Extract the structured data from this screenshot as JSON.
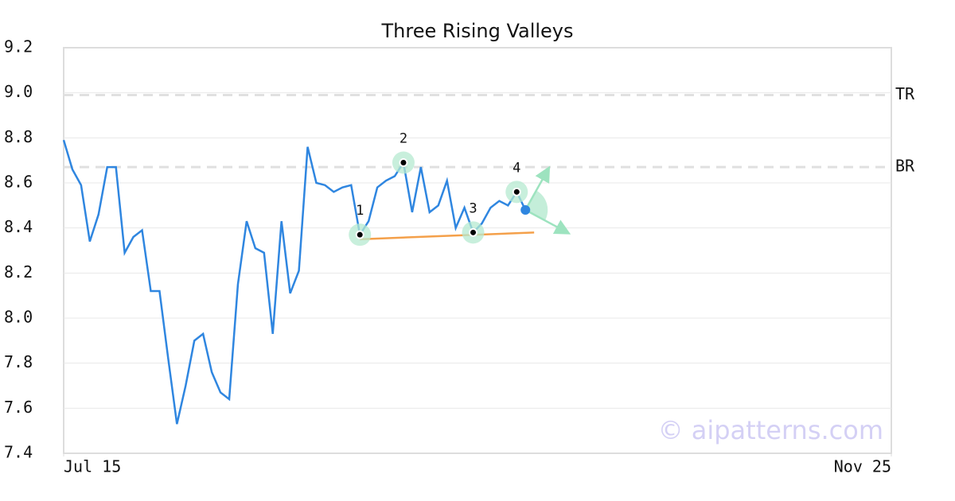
{
  "chart_data": {
    "type": "line",
    "title": "Three Rising Valleys",
    "x": [
      0,
      1,
      2,
      3,
      4,
      5,
      6,
      7,
      8,
      9,
      10,
      11,
      12,
      13,
      14,
      15,
      16,
      17,
      18,
      19,
      20,
      21,
      22,
      23,
      24,
      25,
      26,
      27,
      28,
      29,
      30,
      31,
      32,
      33,
      34,
      35,
      36,
      37,
      38,
      39,
      40,
      41,
      42,
      43,
      44,
      45,
      46,
      47,
      48,
      49,
      50,
      51,
      52,
      53
    ],
    "values": [
      8.79,
      8.66,
      8.59,
      8.34,
      8.46,
      8.67,
      8.67,
      8.29,
      8.36,
      8.39,
      8.12,
      8.12,
      7.82,
      7.53,
      7.7,
      7.9,
      7.93,
      7.76,
      7.67,
      7.64,
      8.15,
      8.43,
      8.31,
      8.29,
      7.93,
      8.43,
      8.11,
      8.21,
      8.76,
      8.6,
      8.59,
      8.56,
      8.58,
      8.59,
      8.37,
      8.43,
      8.58,
      8.61,
      8.63,
      8.69,
      8.47,
      8.67,
      8.47,
      8.5,
      8.61,
      8.4,
      8.49,
      8.38,
      8.42,
      8.49,
      8.52,
      8.5,
      8.56,
      8.48
    ],
    "color": "#2f86e0",
    "xlim": [
      0,
      95
    ],
    "xticks": [
      {
        "value": 0,
        "label": "Jul 15"
      },
      {
        "value": 95,
        "label": "Nov 25"
      }
    ],
    "ylim": [
      7.4,
      9.2
    ],
    "yticks": [
      7.4,
      7.6,
      7.8,
      {
        "value": 8,
        "label": "8.0"
      },
      8.2,
      8.4,
      8.6,
      8.8,
      {
        "value": 9,
        "label": "9.0"
      },
      9.2
    ],
    "grid": true,
    "levels": [
      {
        "label": "TR",
        "value": 8.99
      },
      {
        "label": "BR",
        "value": 8.67
      }
    ],
    "pivots": [
      {
        "label": "1",
        "x": 34,
        "y": 8.37
      },
      {
        "label": "2",
        "x": 39,
        "y": 8.69
      },
      {
        "label": "3",
        "x": 47,
        "y": 8.38
      },
      {
        "label": "4",
        "x": 52,
        "y": 8.56
      }
    ],
    "trendline": {
      "x": [
        34,
        54
      ],
      "y": [
        8.35,
        8.38
      ],
      "color": "#f4a04a"
    },
    "current_color": "#2f86e0",
    "arrows": {
      "x": [
        55.6,
        57.8
      ],
      "y": [
        8.66,
        8.38
      ],
      "color": "#9de3bf"
    },
    "watermark": "© aipatterns.com"
  }
}
